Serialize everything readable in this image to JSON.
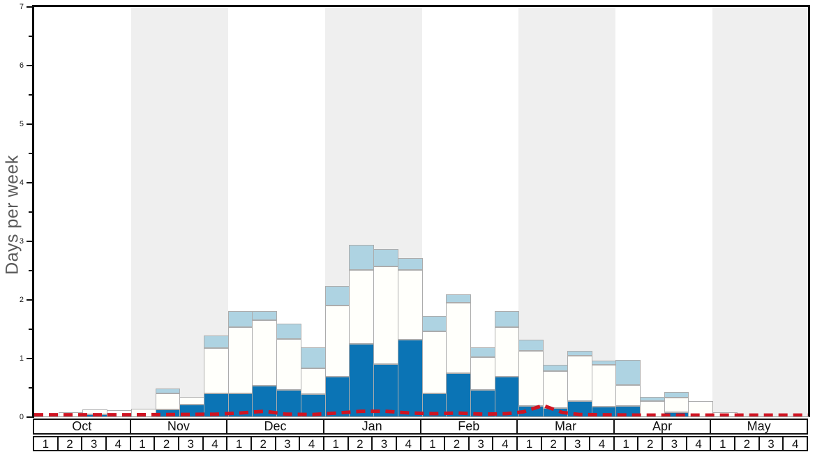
{
  "chart_data": {
    "type": "bar",
    "subtype": "stacked-bars-with-dashed-line",
    "title": "",
    "ylabel": "Days per week",
    "ylim": [
      0,
      7
    ],
    "ytick_labels": [
      "0",
      "1",
      "2",
      "3",
      "4",
      "5",
      "6",
      "7"
    ],
    "ytick_minor_step": 0.5,
    "grid": "off",
    "legend": "none",
    "months": [
      "Oct",
      "Nov",
      "Dec",
      "Jan",
      "Feb",
      "Mar",
      "Apr",
      "May"
    ],
    "shaded_months": [
      "Nov",
      "Jan",
      "Mar",
      "May"
    ],
    "week_labels": [
      "1",
      "2",
      "3",
      "4"
    ],
    "categories": [
      "Oct-1",
      "Oct-2",
      "Oct-3",
      "Oct-4",
      "Nov-1",
      "Nov-2",
      "Nov-3",
      "Nov-4",
      "Dec-1",
      "Dec-2",
      "Dec-3",
      "Dec-4",
      "Jan-1",
      "Jan-2",
      "Jan-3",
      "Jan-4",
      "Feb-1",
      "Feb-2",
      "Feb-3",
      "Feb-4",
      "Mar-1",
      "Mar-2",
      "Mar-3",
      "Mar-4",
      "Apr-1",
      "Apr-2",
      "Apr-3",
      "Apr-4",
      "May-1",
      "May-2",
      "May-3",
      "May-4"
    ],
    "series_note": "values are cumulative stack tops in days-per-week",
    "bars": {
      "dark_top": [
        0,
        0,
        0.05,
        0,
        0,
        0.13,
        0.21,
        0.4,
        0.4,
        0.53,
        0.47,
        0.39,
        0.69,
        1.25,
        0.9,
        1.32,
        0.4,
        0.75,
        0.47,
        0.69,
        0.19,
        0.15,
        0.27,
        0.18,
        0.19,
        0,
        0.08,
        0,
        0,
        0,
        0,
        0
      ],
      "white_top": [
        0,
        0.08,
        0.13,
        0.12,
        0.14,
        0.41,
        0.35,
        1.18,
        1.53,
        1.66,
        1.33,
        0.83,
        1.9,
        2.51,
        2.57,
        2.51,
        1.47,
        1.95,
        1.02,
        1.53,
        1.13,
        0.79,
        1.05,
        0.89,
        0.55,
        0.27,
        0.33,
        0.27,
        0.08,
        0,
        0,
        0
      ],
      "light_top": [
        0,
        0.08,
        0.13,
        0.12,
        0.14,
        0.49,
        0.35,
        1.39,
        1.81,
        1.81,
        1.6,
        1.19,
        2.24,
        2.94,
        2.87,
        2.72,
        1.73,
        2.09,
        1.19,
        1.81,
        1.32,
        0.89,
        1.13,
        0.97,
        0.98,
        0.35,
        0.43,
        0.27,
        0.08,
        0,
        0,
        0
      ]
    },
    "line": {
      "name": "dashed-red-line",
      "points_weeks_vs_days": [
        [
          0,
          0.04
        ],
        [
          2,
          0.04
        ],
        [
          4,
          0.04
        ],
        [
          6,
          0.045
        ],
        [
          7.5,
          0.05
        ],
        [
          8.5,
          0.07
        ],
        [
          9.5,
          0.1
        ],
        [
          10.4,
          0.05
        ],
        [
          11.5,
          0.045
        ],
        [
          12.5,
          0.07
        ],
        [
          13.5,
          0.1
        ],
        [
          14.5,
          0.1
        ],
        [
          15.5,
          0.07
        ],
        [
          16.5,
          0.06
        ],
        [
          17.5,
          0.07
        ],
        [
          18.5,
          0.05
        ],
        [
          19.5,
          0.06
        ],
        [
          20.2,
          0.09
        ],
        [
          21.0,
          0.2
        ],
        [
          21.8,
          0.08
        ],
        [
          22.5,
          0.045
        ],
        [
          23.5,
          0.04
        ],
        [
          25,
          0.035
        ],
        [
          28,
          0.035
        ],
        [
          32,
          0.035
        ]
      ]
    },
    "colors": {
      "dark_segment": "#0b74b5",
      "white_segment": "#fffffb",
      "light_segment": "#aed3e2",
      "line": "#cf1422",
      "band": "#efefef",
      "bar_border": "#acacac"
    }
  }
}
